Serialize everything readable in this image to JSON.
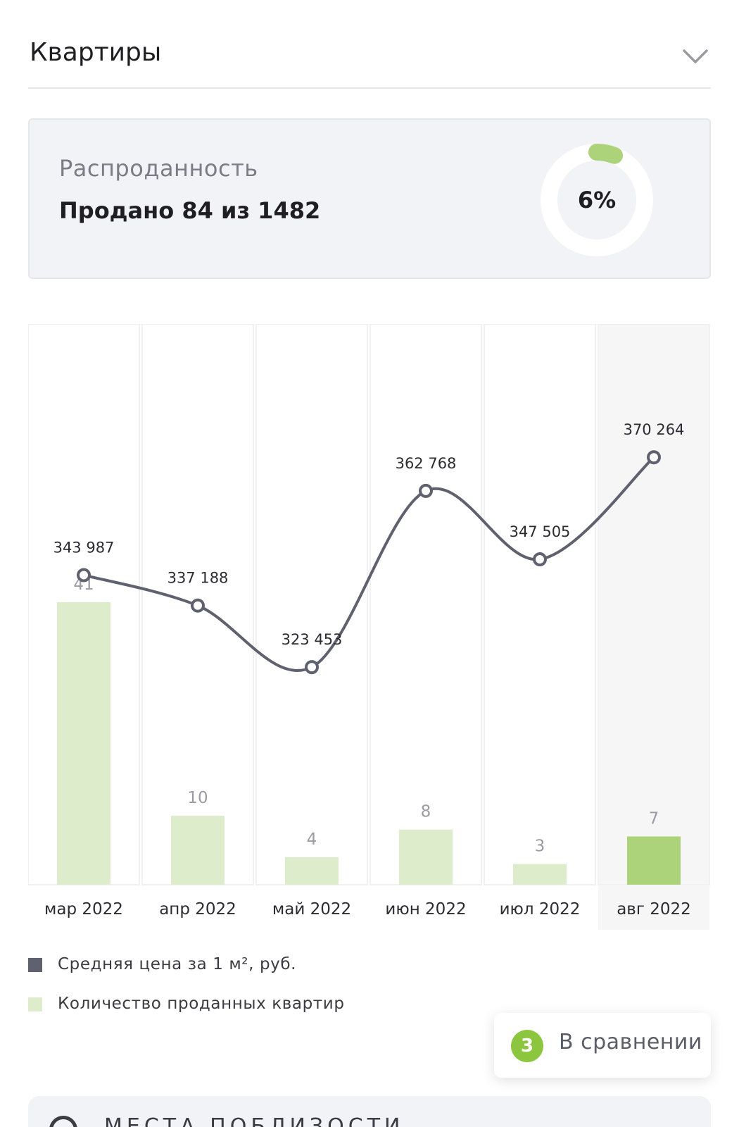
{
  "header": {
    "title": "Квартиры"
  },
  "sold": {
    "label": "Распроданность",
    "value": "Продано 84 из 1482",
    "percent_text": "6%",
    "percent": 6
  },
  "chart_data": {
    "type": "bar",
    "categories": [
      "мар 2022",
      "апр 2022",
      "май 2022",
      "июн 2022",
      "июл 2022",
      "авг 2022"
    ],
    "series": [
      {
        "name": "Средняя цена за 1 м², руб.",
        "type": "line",
        "values": [
          343987,
          337188,
          323453,
          362768,
          347505,
          370264
        ],
        "labels": [
          "343 987",
          "337 188",
          "323 453",
          "362 768",
          "347 505",
          "370 264"
        ],
        "color": "#5f616e"
      },
      {
        "name": "Количество проданных квартир",
        "type": "bar",
        "values": [
          41,
          10,
          4,
          8,
          3,
          7
        ],
        "labels": [
          "41",
          "10",
          "4",
          "8",
          "3",
          "7"
        ],
        "color": "#ddeccb",
        "highlight_color": "#acd37a"
      }
    ],
    "highlight_index": 5,
    "legend_position": "bottom-left"
  },
  "legend": {
    "price": {
      "label": "Средняя цена за 1 м², руб.",
      "color": "#5f616e"
    },
    "count": {
      "label": "Количество проданных квартир",
      "color": "#ddeccb"
    }
  },
  "compare": {
    "count": "3",
    "label": "В сравнении"
  },
  "bottom_card": {
    "label": "МЕСТА ПОБЛИЗОСТИ"
  },
  "colors": {
    "accent": "#8cc63f",
    "card_bg": "#f2f3f6",
    "line": "#5f616e"
  }
}
